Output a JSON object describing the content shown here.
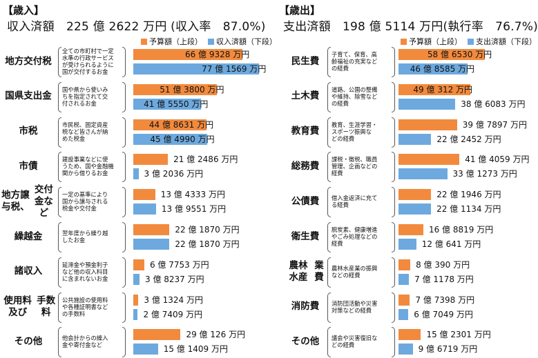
{
  "colors": {
    "budget": "#f28a3e",
    "settle": "#6da9de"
  },
  "chart_data": [
    {
      "type": "bar",
      "title": "【歳入】",
      "summary": "収入済額　225 億 2622 万円 (収入率　87.0%)",
      "legend": [
        "予算額（上段）",
        "収入済額（下段）"
      ],
      "unit": "万円",
      "categories": [
        "地方交付税",
        "国県支出金",
        "市税",
        "市債",
        "地方譲与税、交付金など",
        "繰越金",
        "諸収入",
        "使用料及び手数料",
        "その他"
      ],
      "category_lines": [
        [
          "地方交付税"
        ],
        [
          "国県支出金"
        ],
        [
          "市税"
        ],
        [
          "市債"
        ],
        [
          "地方譲与税、",
          "交付金など"
        ],
        [
          "繰越金"
        ],
        [
          "諸収入"
        ],
        [
          "使用料及び",
          "手数料"
        ],
        [
          "その他"
        ]
      ],
      "notes": [
        [
          "全ての市町村で一定",
          "水準の行政サービス",
          "が受けられるように",
          "国が交付するお金"
        ],
        [
          "国や県から使いみ",
          "ちを指定されて交",
          "付されるお金"
        ],
        [
          "市民税、固定資産",
          "税など皆さんが納",
          "めた税金"
        ],
        [
          "建設事業などに使",
          "うため、国や金融機",
          "関から借りるお金"
        ],
        [
          "一定の基準により",
          "国から譲与される",
          "税金や交付金"
        ],
        [
          "翌年度から繰り越",
          "したお金"
        ],
        [
          "延滞金や預金利子",
          "など他の収入科目",
          "に含まれないお金"
        ],
        [
          "公共施設の使用料",
          "や各種証明書など",
          "の手数料"
        ],
        [
          "他会計からの繰入",
          "金や寄付金など"
        ]
      ],
      "series": [
        {
          "name": "予算額（上段）",
          "values": [
            669328,
            513800,
            448631,
            212486,
            134333,
            221870,
            67753,
            31324,
            290126
          ],
          "labels": [
            "66 億 9328 万円",
            "51 億 3800 万円",
            "44 億 8631 万円",
            "21 億 2486 万円",
            "13 億 4333 万円",
            "22 億 1870 万円",
            "6 億 7753 万円",
            "3 億 1324 万円",
            "29 億 126 万円"
          ]
        },
        {
          "name": "収入済額（下段）",
          "values": [
            771569,
            415550,
            454990,
            32036,
            139551,
            221870,
            38237,
            27409,
            151409
          ],
          "labels": [
            "77 億 1569 万円",
            "41 億 5550 万円",
            "45 億 4990 万円",
            "3 億 2036 万円",
            "13 億 9551 万円",
            "22 億 1870 万円",
            "3 億 8237 万円",
            "2 億 7409 万円",
            "15 億 1409 万円"
          ]
        }
      ]
    },
    {
      "type": "bar",
      "title": "【歳出】",
      "summary": "支出済額　198 億 5114 万円(執行率　76.7%)",
      "legend": [
        "予算額（上段）",
        "支出済額（下段）"
      ],
      "unit": "万円",
      "categories": [
        "民生費",
        "土木費",
        "教育費",
        "総務費",
        "公債費",
        "衛生費",
        "農林水産業費",
        "消防費",
        "その他"
      ],
      "category_lines": [
        [
          "民生費"
        ],
        [
          "土木費"
        ],
        [
          "教育費"
        ],
        [
          "総務費"
        ],
        [
          "公債費"
        ],
        [
          "衛生費"
        ],
        [
          "農林水産",
          "業費"
        ],
        [
          "消防費"
        ],
        [
          "その他"
        ]
      ],
      "notes": [
        [
          "子育て、保育、高",
          "齢福祉の充実など",
          "の経費"
        ],
        [
          "道路、公園の整備",
          "や維持、除雪など",
          "の経費"
        ],
        [
          "教育、生涯学習・",
          "スポーツ振興な",
          "どの経費"
        ],
        [
          "課税・徴税、職員",
          "管理、企画などの",
          "経費"
        ],
        [
          "借入金返済に充て",
          "る経費"
        ],
        [
          "脱炭素、健康増進",
          "やごみ処理などの",
          "経費"
        ],
        [
          "農林水産業の振興",
          "などの経費"
        ],
        [
          "消防団活動や災害",
          "対策などの経費"
        ],
        [
          "議会や災害復旧な",
          "どの経費"
        ]
      ],
      "series": [
        {
          "name": "予算額（上段）",
          "values": [
            586530,
            490312,
            397897,
            414059,
            221946,
            168819,
            80390,
            77398,
            152301
          ],
          "labels": [
            "58 億 6530 万円",
            "49 億 312 万円",
            "39 億 7897 万円",
            "41 億 4059 万円",
            "22 億 1946 万円",
            "16 億 8819 万円",
            "8 億 390 万円",
            "7 億 7398 万円",
            "15 億 2301 万円"
          ]
        },
        {
          "name": "支出済額（下段）",
          "values": [
            468585,
            386083,
            222452,
            331273,
            221134,
            120641,
            71178,
            67049,
            96719
          ],
          "labels": [
            "46 億 8585 万円",
            "38 億 6083 万円",
            "22 億 2452 万円",
            "33 億 1273 万円",
            "22 億 1134 万円",
            "12 億 641 万円",
            "7 億 1178 万円",
            "6 億 7049 万円",
            "9 億 6719 万円"
          ]
        }
      ]
    }
  ]
}
